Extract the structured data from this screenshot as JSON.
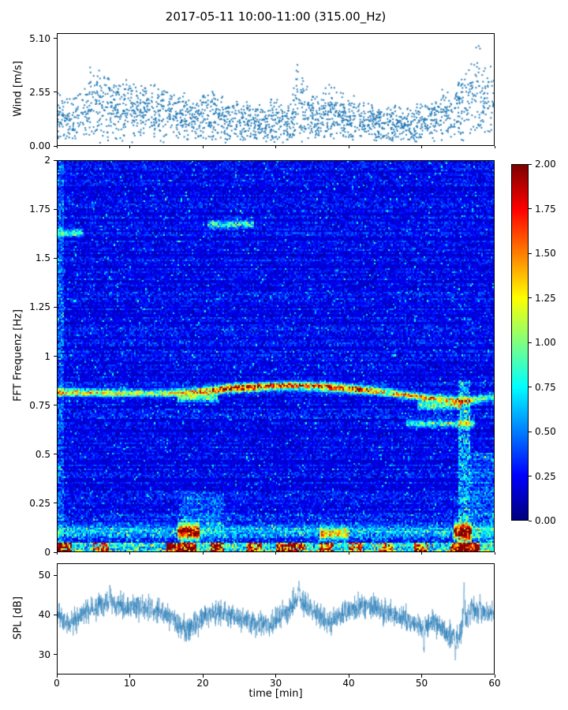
{
  "figure": {
    "title": "2017-05-11 10:00-11:00 (315.00_Hz)",
    "xlabel": "time [min]",
    "xlim": [
      0,
      60
    ],
    "xticks": [
      {
        "v": 0,
        "label": "0"
      },
      {
        "v": 10,
        "label": "10"
      },
      {
        "v": 20,
        "label": "20"
      },
      {
        "v": 30,
        "label": "30"
      },
      {
        "v": 40,
        "label": "40"
      },
      {
        "v": 50,
        "label": "50"
      },
      {
        "v": 60,
        "label": "60"
      }
    ],
    "background": "#ffffff"
  },
  "chart_data": [
    {
      "id": "wind",
      "type": "scatter",
      "ylabel": "Wind [m/s]",
      "ylim": [
        0,
        5.35
      ],
      "yticks": [
        {
          "v": 5.1,
          "label": "5.10"
        },
        {
          "v": 2.55,
          "label": "2.55"
        },
        {
          "v": 0.0,
          "label": "0.00"
        }
      ],
      "marker_color": "#1f77b4",
      "n_points": 2200,
      "seed": 7,
      "envelope_max_mps": [
        [
          0,
          2.9
        ],
        [
          2,
          2.6
        ],
        [
          4,
          3.3
        ],
        [
          5,
          4.8
        ],
        [
          6,
          3.4
        ],
        [
          8,
          3.6
        ],
        [
          10,
          3.2
        ],
        [
          12,
          3.1
        ],
        [
          14,
          3.2
        ],
        [
          16,
          2.6
        ],
        [
          18,
          2.5
        ],
        [
          20,
          2.7
        ],
        [
          22,
          2.9
        ],
        [
          24,
          2.3
        ],
        [
          26,
          2.2
        ],
        [
          28,
          2.1
        ],
        [
          30,
          2.4
        ],
        [
          32,
          2.0
        ],
        [
          33,
          4.4
        ],
        [
          34,
          3.3
        ],
        [
          35,
          2.6
        ],
        [
          36,
          2.3
        ],
        [
          37,
          3.4
        ],
        [
          38,
          2.8
        ],
        [
          40,
          2.6
        ],
        [
          42,
          2.2
        ],
        [
          44,
          2.0
        ],
        [
          46,
          2.1
        ],
        [
          48,
          1.9
        ],
        [
          50,
          2.3
        ],
        [
          52,
          2.5
        ],
        [
          54,
          3.0
        ],
        [
          55,
          4.2
        ],
        [
          56,
          3.6
        ],
        [
          57,
          4.9
        ],
        [
          58,
          5.1
        ],
        [
          59,
          4.4
        ],
        [
          60,
          4.1
        ]
      ]
    },
    {
      "id": "spectrogram",
      "type": "heatmap",
      "ylabel": "FFT Frequenz [Hz]",
      "ylim": [
        0,
        2
      ],
      "yticks": [
        {
          "v": 2,
          "label": "2"
        },
        {
          "v": 1.75,
          "label": "1.75"
        },
        {
          "v": 1.5,
          "label": "1.5"
        },
        {
          "v": 1.25,
          "label": "1.25"
        },
        {
          "v": 1,
          "label": "1"
        },
        {
          "v": 0.75,
          "label": "0.75"
        },
        {
          "v": 0.5,
          "label": "0.5"
        },
        {
          "v": 0.25,
          "label": "0.25"
        },
        {
          "v": 0,
          "label": "0"
        }
      ],
      "colormap": "jet",
      "vmin": 0,
      "vmax": 2,
      "colorbar_ticks": [
        {
          "v": 2.0,
          "label": "2.00"
        },
        {
          "v": 1.75,
          "label": "1.75"
        },
        {
          "v": 1.5,
          "label": "1.50"
        },
        {
          "v": 1.25,
          "label": "1.25"
        },
        {
          "v": 1.0,
          "label": "1.00"
        },
        {
          "v": 0.75,
          "label": "0.75"
        },
        {
          "v": 0.5,
          "label": "0.50"
        },
        {
          "v": 0.25,
          "label": "0.25"
        },
        {
          "v": 0.0,
          "label": "0.00"
        }
      ],
      "grid": {
        "nx": 280,
        "ny": 230
      },
      "seed": 11,
      "background_noise": {
        "base": 0.08,
        "noise": 0.3,
        "speckle_prob": 0.05,
        "speckle_gain": 0.55,
        "low_freq_boost": 0.55,
        "low_freq_cutoff": 0.32
      },
      "main_band": {
        "sigma": 0.013,
        "freq_keyframes": [
          [
            0,
            0.815
          ],
          [
            8,
            0.81
          ],
          [
            15,
            0.81
          ],
          [
            20,
            0.82
          ],
          [
            24,
            0.835
          ],
          [
            28,
            0.845
          ],
          [
            32,
            0.85
          ],
          [
            36,
            0.845
          ],
          [
            40,
            0.835
          ],
          [
            44,
            0.82
          ],
          [
            48,
            0.8
          ],
          [
            51,
            0.785
          ],
          [
            54,
            0.775
          ],
          [
            56,
            0.77
          ],
          [
            58,
            0.78
          ],
          [
            60,
            0.79
          ]
        ],
        "amp_keyframes": [
          [
            0,
            1.5
          ],
          [
            4,
            1.1
          ],
          [
            8,
            1.2
          ],
          [
            12,
            1.0
          ],
          [
            16,
            1.1
          ],
          [
            19,
            1.5
          ],
          [
            22,
            1.8
          ],
          [
            25,
            1.9
          ],
          [
            27,
            2.0
          ],
          [
            29,
            1.7
          ],
          [
            31,
            1.9
          ],
          [
            33,
            1.8
          ],
          [
            35,
            1.6
          ],
          [
            37,
            1.9
          ],
          [
            39,
            1.8
          ],
          [
            41,
            1.9
          ],
          [
            43,
            1.5
          ],
          [
            45,
            1.2
          ],
          [
            47,
            1.4
          ],
          [
            49,
            1.3
          ],
          [
            51,
            1.6
          ],
          [
            53,
            1.1
          ],
          [
            55,
            1.5
          ],
          [
            57,
            1.2
          ],
          [
            58,
            0.9
          ],
          [
            60,
            0.8
          ]
        ]
      },
      "band_segments": [
        {
          "t0": 0,
          "t1": 3.5,
          "f": 1.63,
          "amp": 0.7,
          "sigma": 0.012
        },
        {
          "t0": 20.5,
          "t1": 27,
          "f": 1.675,
          "amp": 0.75,
          "sigma": 0.012
        },
        {
          "t0": 16.5,
          "t1": 22,
          "f": 0.785,
          "amp": 0.85,
          "sigma": 0.012
        },
        {
          "t0": 48,
          "t1": 57.5,
          "f": 0.655,
          "amp": 0.7,
          "sigma": 0.013
        },
        {
          "t0": 49.5,
          "t1": 55.5,
          "f": 0.745,
          "amp": 0.9,
          "sigma": 0.013
        },
        {
          "t0": 16.5,
          "t1": 19.5,
          "f": 0.1,
          "amp": 1.7,
          "sigma": 0.025
        },
        {
          "t0": 54.5,
          "t1": 57,
          "f": 0.1,
          "amp": 1.5,
          "sigma": 0.03
        },
        {
          "t0": 36,
          "t1": 40,
          "f": 0.09,
          "amp": 0.9,
          "sigma": 0.022
        },
        {
          "t0": 0,
          "t1": 60,
          "f": 0.105,
          "amp": 0.45,
          "sigma": 0.02
        }
      ],
      "bottom_band": {
        "cutoff": 0.045,
        "base": 0.7,
        "patches": [
          [
            0,
            2,
            1.7
          ],
          [
            5,
            7,
            1.1
          ],
          [
            15,
            19,
            1.9
          ],
          [
            21,
            23,
            1.5
          ],
          [
            26,
            28,
            1.2
          ],
          [
            30,
            34,
            1.6
          ],
          [
            36,
            38,
            1.4
          ],
          [
            40,
            42,
            1.2
          ],
          [
            44,
            46,
            1.0
          ],
          [
            49,
            51,
            1.3
          ],
          [
            54,
            58,
            1.8
          ]
        ]
      },
      "vertical_stripes": [
        {
          "t0": 55.0,
          "t1": 56.8,
          "fmax": 0.88,
          "gain": 0.55
        },
        {
          "t0": 56.8,
          "t1": 60,
          "fmax": 0.5,
          "gain": 0.3
        },
        {
          "t0": 17,
          "t1": 23,
          "fmax": 0.3,
          "gain": 0.25
        },
        {
          "t0": 0,
          "t1": 0.9,
          "fmax": 2,
          "gain": 0.3
        }
      ]
    },
    {
      "id": "spl",
      "type": "line",
      "ylabel": "SPL [dB]",
      "ylim": [
        25,
        53
      ],
      "yticks": [
        {
          "v": 50,
          "label": "50"
        },
        {
          "v": 40,
          "label": "40"
        },
        {
          "v": 30,
          "label": "30"
        }
      ],
      "line_color": "#1f77b4",
      "n_points": 2600,
      "seed": 23,
      "noise_db": 1.6,
      "baseline_keyframes": [
        [
          0,
          40
        ],
        [
          1,
          38.5
        ],
        [
          2,
          38
        ],
        [
          3,
          40
        ],
        [
          4,
          41
        ],
        [
          5,
          41.5
        ],
        [
          6,
          42.5
        ],
        [
          7,
          43
        ],
        [
          8,
          43
        ],
        [
          9,
          42.5
        ],
        [
          10,
          42
        ],
        [
          11,
          42.5
        ],
        [
          12,
          42
        ],
        [
          13,
          41.5
        ],
        [
          14,
          41
        ],
        [
          15,
          40
        ],
        [
          16,
          39
        ],
        [
          17,
          36.5
        ],
        [
          18,
          36.5
        ],
        [
          19,
          37.5
        ],
        [
          20,
          39.5
        ],
        [
          21,
          40
        ],
        [
          22,
          40.5
        ],
        [
          23,
          40
        ],
        [
          24,
          39.5
        ],
        [
          25,
          39
        ],
        [
          26,
          38.5
        ],
        [
          27,
          38
        ],
        [
          28,
          37.5
        ],
        [
          29,
          37.5
        ],
        [
          30,
          38.5
        ],
        [
          31,
          40
        ],
        [
          32,
          42
        ],
        [
          33,
          44
        ],
        [
          34,
          42.5
        ],
        [
          35,
          41.5
        ],
        [
          36,
          39.5
        ],
        [
          37,
          38
        ],
        [
          38,
          38.5
        ],
        [
          39,
          40
        ],
        [
          40,
          41
        ],
        [
          41,
          42
        ],
        [
          42,
          42.5
        ],
        [
          43,
          42
        ],
        [
          44,
          41.5
        ],
        [
          45,
          41
        ],
        [
          46,
          40.5
        ],
        [
          47,
          40
        ],
        [
          48,
          39
        ],
        [
          49,
          38
        ],
        [
          50,
          36.5
        ],
        [
          51,
          37.5
        ],
        [
          52,
          38
        ],
        [
          53,
          37
        ],
        [
          54,
          34.5
        ],
        [
          55,
          33.5
        ],
        [
          56,
          39
        ],
        [
          57,
          41.5
        ],
        [
          58,
          40
        ],
        [
          59,
          40.5
        ],
        [
          60,
          41
        ]
      ],
      "spikes": [
        {
          "t": 7.2,
          "v": 48.5
        },
        {
          "t": 33.2,
          "v": 49.8
        },
        {
          "t": 50.4,
          "v": 29.5
        },
        {
          "t": 54.7,
          "v": 28.0
        },
        {
          "t": 55.9,
          "v": 50.5
        },
        {
          "t": 58.1,
          "v": 46.0
        }
      ]
    }
  ]
}
